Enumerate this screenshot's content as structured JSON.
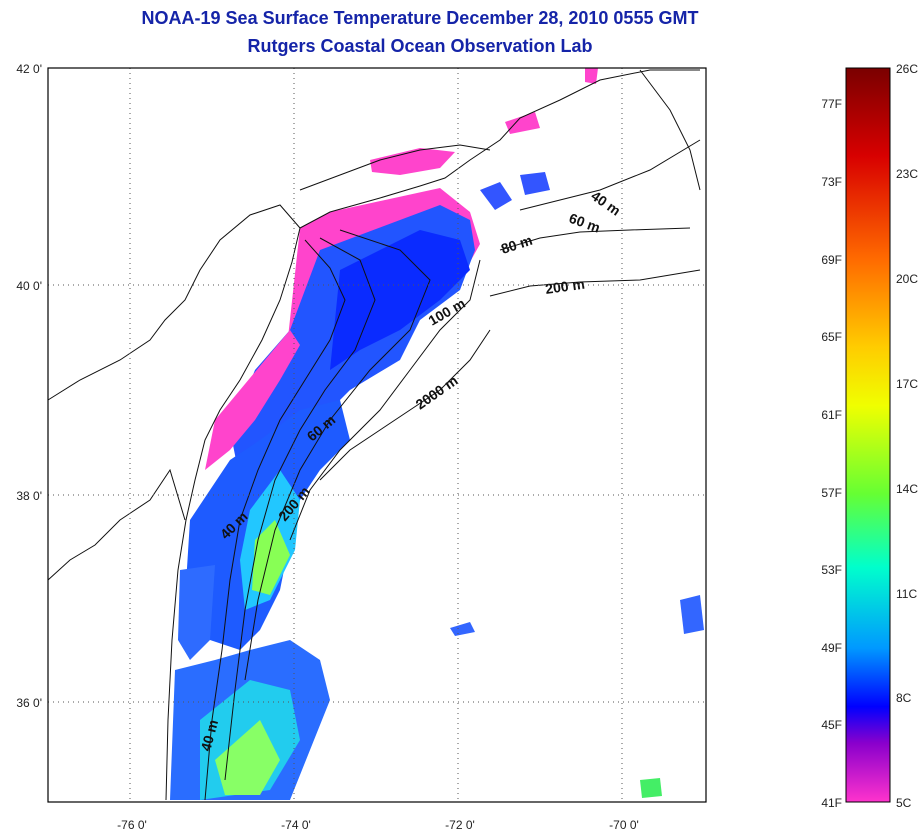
{
  "title": {
    "line1": "NOAA-19 Sea Surface Temperature December 28, 2010 0555 GMT",
    "line2": "Rutgers Coastal Ocean Observation Lab"
  },
  "map": {
    "lat_labels": [
      "42 0'",
      "40 0'",
      "38 0'",
      "36 0'"
    ],
    "lon_labels": [
      "-76 0'",
      "-74 0'",
      "-72 0'",
      "-70 0'"
    ],
    "contour_labels": [
      "40 m",
      "60 m",
      "80 m",
      "200 m",
      "100 m",
      "2000 m",
      "60 m",
      "200 m",
      "40 m",
      "40 m"
    ]
  },
  "colorbar": {
    "fahrenheit": [
      "77F",
      "73F",
      "69F",
      "65F",
      "61F",
      "57F",
      "53F",
      "49F",
      "45F",
      "41F"
    ],
    "celsius": [
      "26C",
      "23C",
      "20C",
      "17C",
      "14C",
      "11C",
      "8C",
      "5C"
    ],
    "colors": [
      "#7a0000",
      "#d80000",
      "#ff6a00",
      "#ffcc00",
      "#f0ff00",
      "#66ff33",
      "#00ffcc",
      "#0099ff",
      "#0000ff",
      "#8a00cc",
      "#ff33cc"
    ]
  }
}
